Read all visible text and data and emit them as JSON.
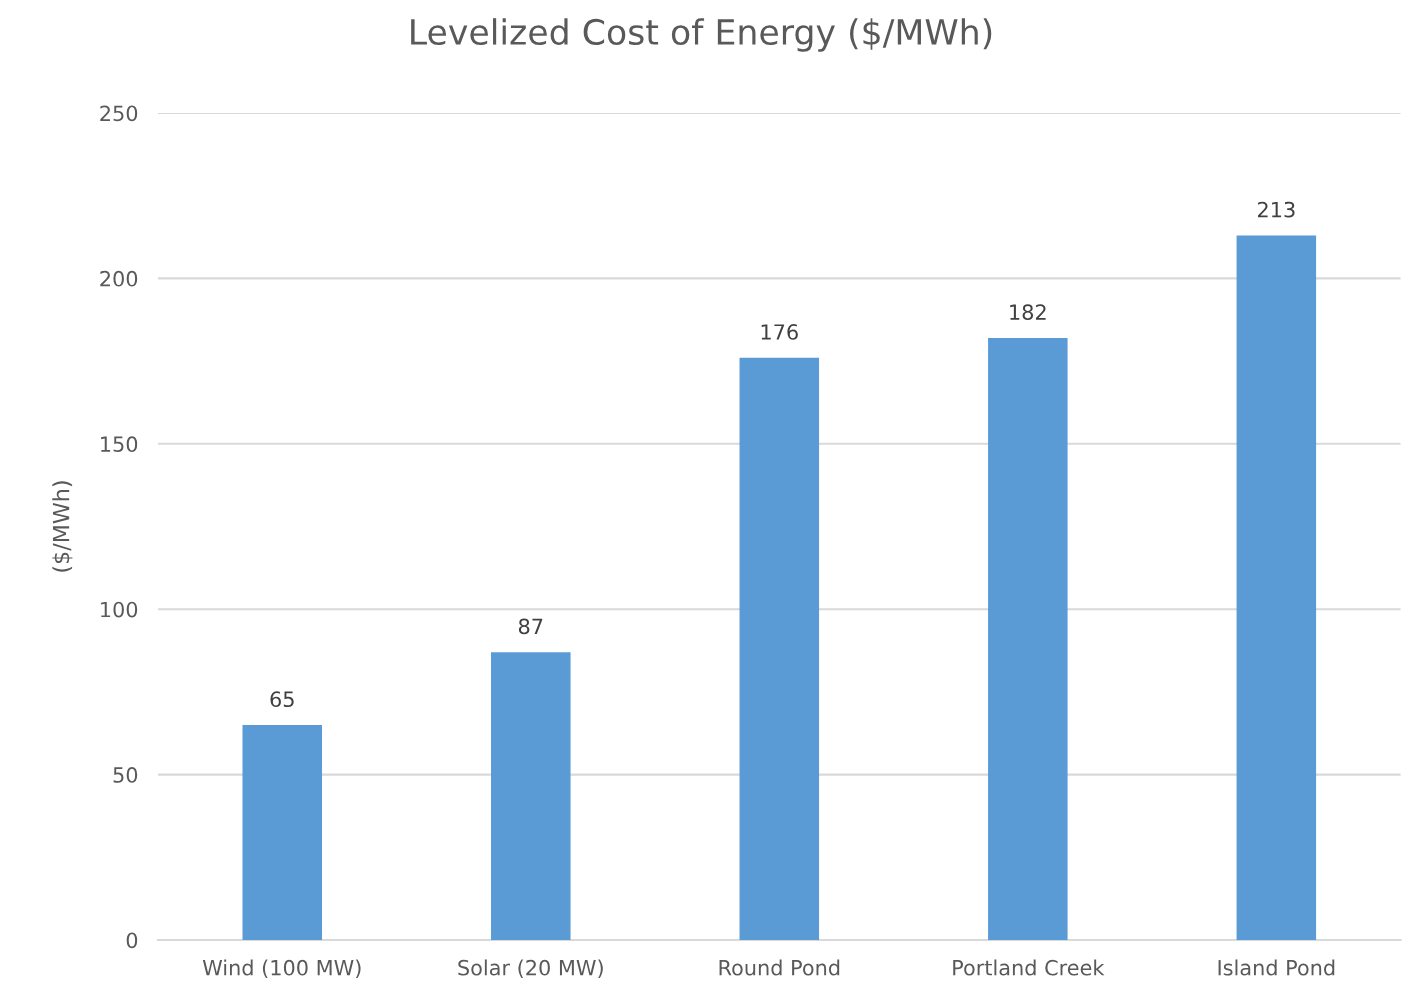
{
  "chart_data": {
    "type": "bar",
    "title": "Levelized Cost of Energy ($/MWh)",
    "ylabel": "($/MWh)",
    "categories": [
      "Wind (100 MW)",
      "Solar (20 MW)",
      "Round Pond",
      "Portland Creek",
      "Island Pond"
    ],
    "values": [
      65,
      87,
      176,
      182,
      213
    ],
    "color": "#5b9bd5",
    "ylim": [
      0,
      250
    ],
    "yticks": [
      0,
      50,
      100,
      150,
      200,
      250
    ],
    "grid": "y",
    "data_labels": true,
    "legend": false
  }
}
